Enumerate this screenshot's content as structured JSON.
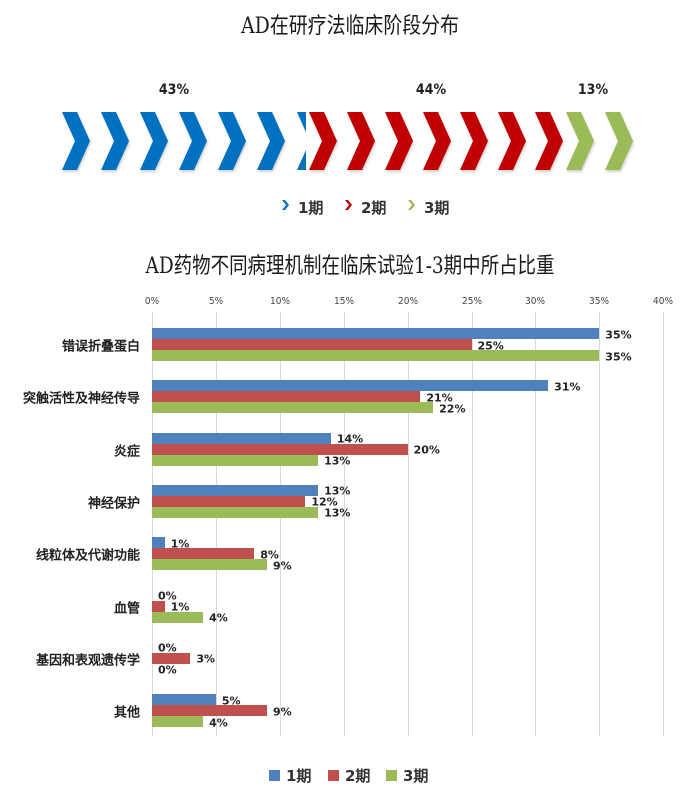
{
  "chart_data": [
    {
      "type": "bar",
      "subtype": "chevron-proportion",
      "title": "AD在研疗法临床阶段分布",
      "categories": [
        "1期",
        "2期",
        "3期"
      ],
      "values": [
        43,
        44,
        13
      ],
      "value_labels": [
        "43%",
        "44%",
        "13%"
      ],
      "colors": [
        "#0070C0",
        "#C00000",
        "#9BBB59"
      ],
      "legend": {
        "position": "bottom",
        "entries": [
          "1期",
          "2期",
          "3期"
        ]
      }
    },
    {
      "type": "bar",
      "orientation": "horizontal",
      "title": "AD药物不同病理机制在临床试验1-3期中所占比重",
      "xlabel": "",
      "ylabel": "",
      "xlim": [
        0,
        40
      ],
      "x_ticks": [
        "0%",
        "5%",
        "10%",
        "15%",
        "20%",
        "25%",
        "30%",
        "35%",
        "40%"
      ],
      "x_axis_position": "top",
      "grid": true,
      "categories": [
        "错误折叠蛋白",
        "突触活性及神经传导",
        "炎症",
        "神经保护",
        "线粒体及代谢功能",
        "血管",
        "基因和表观遗传学",
        "其他"
      ],
      "series": [
        {
          "name": "1期",
          "color": "#4F81BD",
          "values": [
            35,
            31,
            14,
            13,
            1,
            0,
            0,
            5
          ],
          "labels": [
            "35%",
            "31%",
            "14%",
            "13%",
            "1%",
            "0%",
            "0%",
            "5%"
          ]
        },
        {
          "name": "2期",
          "color": "#C0504D",
          "values": [
            25,
            21,
            20,
            12,
            8,
            1,
            3,
            9
          ],
          "labels": [
            "25%",
            "21%",
            "20%",
            "12%",
            "8%",
            "1%",
            "3%",
            "9%"
          ]
        },
        {
          "name": "3期",
          "color": "#9BBB59",
          "values": [
            35,
            22,
            13,
            13,
            9,
            4,
            0,
            4
          ],
          "labels": [
            "35%",
            "22%",
            "13%",
            "13%",
            "9%",
            "4%",
            "0%",
            "4%"
          ]
        }
      ],
      "legend": {
        "position": "bottom",
        "entries": [
          "1期",
          "2期",
          "3期"
        ]
      }
    }
  ],
  "phase_chart": {
    "title": "AD在研疗法临床阶段分布",
    "percentages": [
      "43%",
      "44%",
      "13%"
    ],
    "legend": [
      "1期",
      "2期",
      "3期"
    ]
  },
  "mechanism_chart": {
    "title": "AD药物不同病理机制在临床试验1-3期中所占比重",
    "ticks": [
      "0%",
      "5%",
      "10%",
      "15%",
      "20%",
      "25%",
      "30%",
      "35%",
      "40%"
    ],
    "legend": [
      "1期",
      "2期",
      "3期"
    ]
  }
}
